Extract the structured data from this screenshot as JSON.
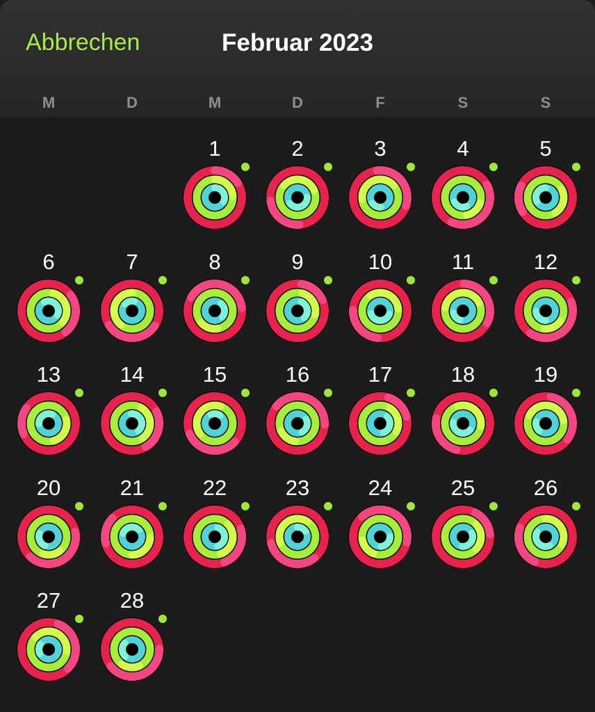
{
  "header": {
    "cancel_label": "Abbrechen",
    "title": "Februar 2023"
  },
  "weekdays": [
    "M",
    "D",
    "M",
    "D",
    "F",
    "S",
    "S"
  ],
  "first_weekday_index": 2,
  "days": [
    "1",
    "2",
    "3",
    "4",
    "5",
    "6",
    "7",
    "8",
    "9",
    "10",
    "11",
    "12",
    "13",
    "14",
    "15",
    "16",
    "17",
    "18",
    "19",
    "20",
    "21",
    "22",
    "23",
    "24",
    "25",
    "26",
    "27",
    "28"
  ],
  "rings": {
    "move_color": "#e5234c",
    "move_end_color": "#f2477f",
    "exercise_color": "#a6ee3a",
    "exercise_end_color": "#d2fb4c",
    "stand_color": "#4fd3d6",
    "stand_end_color": "#7ef3d8",
    "dot_color": "#9fe83a",
    "all_closed": true
  }
}
